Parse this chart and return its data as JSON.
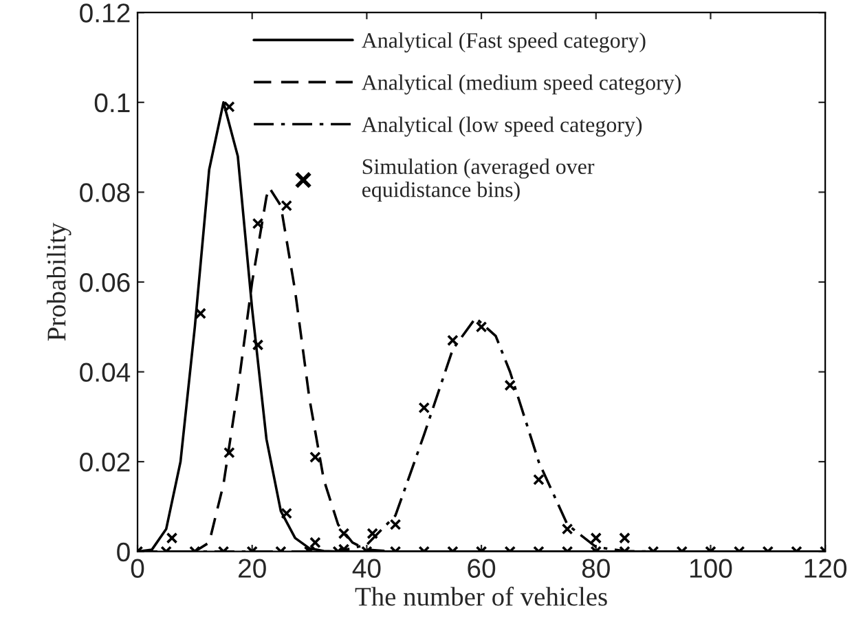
{
  "chart_data": {
    "type": "line",
    "xlabel": "The number of vehicles",
    "ylabel": "Probability",
    "xlim": [
      0,
      120
    ],
    "ylim": [
      0,
      0.12
    ],
    "xticks": [
      0,
      20,
      40,
      60,
      80,
      100,
      120
    ],
    "yticks": [
      0,
      0.02,
      0.04,
      0.06,
      0.08,
      0.1,
      0.12
    ],
    "grid": false,
    "legend": "top right",
    "series": [
      {
        "name": "Analytical (Fast speed category)",
        "color": "#000000",
        "line_style": "solid",
        "marker": "none",
        "x": [
          0,
          2.5,
          5,
          7.5,
          10,
          12.5,
          15,
          17.5,
          20,
          22.5,
          25,
          27.5,
          30,
          32.5,
          35,
          40,
          120
        ],
        "values": [
          0,
          0.0004,
          0.005,
          0.02,
          0.05,
          0.085,
          0.1,
          0.088,
          0.054,
          0.025,
          0.009,
          0.003,
          0.0007,
          0.0001,
          0,
          0,
          0
        ]
      },
      {
        "name": "Analytical (medium speed category)",
        "color": "#000000",
        "line_style": "dashed",
        "marker": "none",
        "x": [
          0,
          10,
          12.5,
          15,
          17.5,
          20,
          22.5,
          23,
          25,
          27.5,
          30,
          32.5,
          35,
          37.5,
          40,
          45,
          120
        ],
        "values": [
          0,
          0,
          0.002,
          0.015,
          0.036,
          0.06,
          0.079,
          0.081,
          0.077,
          0.058,
          0.034,
          0.016,
          0.006,
          0.002,
          0.0004,
          0,
          0
        ]
      },
      {
        "name": "Analytical (low speed category)",
        "color": "#000000",
        "line_style": "dashdot",
        "marker": "none",
        "x": [
          0,
          35,
          40,
          45,
          50,
          55,
          59,
          62.5,
          65,
          70,
          75,
          80,
          85,
          90,
          120
        ],
        "values": [
          0,
          0,
          0.0015,
          0.008,
          0.026,
          0.045,
          0.052,
          0.048,
          0.04,
          0.02,
          0.006,
          0.001,
          0.0001,
          0,
          0
        ]
      },
      {
        "name": "Simulation (averaged over\nequidistance bins)",
        "type": "scatter",
        "color": "#000000",
        "marker": "cross",
        "x": [
          0,
          5,
          10,
          15,
          20,
          25,
          30,
          35,
          40,
          45,
          50,
          55,
          60,
          65,
          70,
          75,
          80,
          85,
          90,
          95,
          100,
          105,
          110,
          115,
          120,
          6,
          11,
          16,
          21,
          26,
          31,
          36,
          16,
          21,
          26,
          31,
          36,
          41,
          45,
          50,
          55,
          60,
          65,
          70,
          75,
          80,
          85
        ],
        "values": [
          0,
          0,
          0,
          0,
          0,
          0,
          0,
          0,
          0,
          0,
          0,
          0,
          0,
          0,
          0,
          0,
          0,
          0,
          0,
          0,
          0,
          0,
          0,
          0,
          0,
          0.003,
          0.053,
          0.099,
          0.046,
          0.0085,
          0.002,
          0.0005,
          0.022,
          0.073,
          0.077,
          0.021,
          0.004,
          0.004,
          0.006,
          0.032,
          0.047,
          0.05,
          0.037,
          0.016,
          0.005,
          0.003,
          0.003
        ]
      }
    ]
  }
}
